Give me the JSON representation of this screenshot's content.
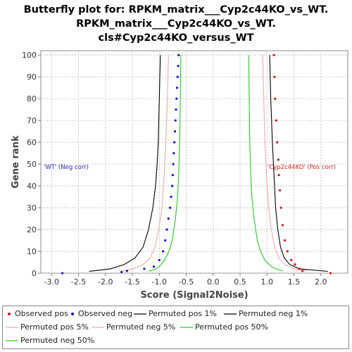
{
  "chart_data": {
    "type": "line",
    "title_lines": [
      "Butterfly plot for: RPKM_matrix___Cyp2c44KO_vs_WT.",
      "RPKM_matrix___Cyp2c44KO_vs_WT.",
      "cls#Cyp2c44KO_versus_WT"
    ],
    "xlabel": "Score (Signal2Noise)",
    "ylabel": "Gene rank",
    "xlim": [
      -3.2,
      2.5
    ],
    "ylim": [
      0,
      102
    ],
    "x_ticks": [
      "-3.0",
      "-2.5",
      "-2.0",
      "-1.5",
      "-1.0",
      "-0.5",
      "0.0",
      "0.5",
      "1.0",
      "1.5",
      "2.0"
    ],
    "y_ticks": [
      "0",
      "10",
      "20",
      "30",
      "40",
      "50",
      "60",
      "70",
      "80",
      "90",
      "100"
    ],
    "grid": true,
    "legend_position": "bottom",
    "annotations": [
      {
        "text": "'WT' (Neg corr)",
        "color": "#2222cc",
        "x": -3.2,
        "y": 50
      },
      {
        "text": "'Cyp2c44KO' (Pos corr)",
        "color": "#dd2222",
        "x": 1.05,
        "y": 50
      }
    ],
    "series": [
      {
        "name": "Observed pos",
        "kind": "points",
        "color": "#dd1111",
        "points": [
          [
            1.13,
            100
          ],
          [
            1.14,
            90
          ],
          [
            1.15,
            80
          ],
          [
            1.17,
            70
          ],
          [
            1.19,
            60
          ],
          [
            1.21,
            52
          ],
          [
            1.22,
            45
          ],
          [
            1.24,
            38
          ],
          [
            1.26,
            30
          ],
          [
            1.29,
            22
          ],
          [
            1.33,
            15
          ],
          [
            1.38,
            10
          ],
          [
            1.45,
            6
          ],
          [
            1.52,
            4
          ],
          [
            1.6,
            2
          ],
          [
            1.66,
            1
          ],
          [
            2.18,
            0
          ]
        ]
      },
      {
        "name": "Observed neg",
        "kind": "points",
        "color": "#1111dd",
        "points": [
          [
            -0.64,
            100
          ],
          [
            -0.65,
            95
          ],
          [
            -0.66,
            90
          ],
          [
            -0.67,
            85
          ],
          [
            -0.68,
            80
          ],
          [
            -0.69,
            75
          ],
          [
            -0.7,
            70
          ],
          [
            -0.71,
            65
          ],
          [
            -0.72,
            60
          ],
          [
            -0.73,
            55
          ],
          [
            -0.74,
            50
          ],
          [
            -0.75,
            45
          ],
          [
            -0.76,
            40
          ],
          [
            -0.78,
            35
          ],
          [
            -0.8,
            30
          ],
          [
            -0.83,
            25
          ],
          [
            -0.86,
            20
          ],
          [
            -0.89,
            15
          ],
          [
            -0.93,
            10
          ],
          [
            -1.0,
            6
          ],
          [
            -1.1,
            3
          ],
          [
            -1.28,
            2
          ],
          [
            -1.6,
            1
          ],
          [
            -1.7,
            0.5
          ],
          [
            -2.8,
            0
          ]
        ]
      },
      {
        "name": "Permuted pos 1%",
        "kind": "line",
        "color": "#000000",
        "points": [
          [
            1.05,
            100
          ],
          [
            1.07,
            80
          ],
          [
            1.1,
            60
          ],
          [
            1.13,
            45
          ],
          [
            1.16,
            30
          ],
          [
            1.2,
            20
          ],
          [
            1.25,
            12
          ],
          [
            1.32,
            7
          ],
          [
            1.42,
            4
          ],
          [
            1.6,
            2
          ],
          [
            2.13,
            0.8
          ]
        ]
      },
      {
        "name": "Permuted neg 1%",
        "kind": "line",
        "color": "#000000",
        "points": [
          [
            -0.98,
            100
          ],
          [
            -1.0,
            80
          ],
          [
            -1.02,
            60
          ],
          [
            -1.04,
            50
          ],
          [
            -1.07,
            40
          ],
          [
            -1.12,
            30
          ],
          [
            -1.2,
            20
          ],
          [
            -1.3,
            12
          ],
          [
            -1.45,
            7
          ],
          [
            -1.65,
            4
          ],
          [
            -1.9,
            2
          ],
          [
            -2.3,
            0.8
          ]
        ]
      },
      {
        "name": "Permuted pos 5%",
        "kind": "line",
        "color": "#f4a8a8",
        "points": [
          [
            0.92,
            100
          ],
          [
            0.94,
            80
          ],
          [
            0.96,
            60
          ],
          [
            0.99,
            45
          ],
          [
            1.03,
            30
          ],
          [
            1.08,
            20
          ],
          [
            1.14,
            12
          ],
          [
            1.22,
            7
          ],
          [
            1.33,
            4
          ],
          [
            1.5,
            2
          ],
          [
            1.75,
            1
          ]
        ]
      },
      {
        "name": "Permuted neg 5%",
        "kind": "line",
        "color": "#f4a8a8",
        "points": [
          [
            -0.83,
            100
          ],
          [
            -0.85,
            80
          ],
          [
            -0.88,
            60
          ],
          [
            -0.91,
            45
          ],
          [
            -0.95,
            30
          ],
          [
            -1.01,
            20
          ],
          [
            -1.08,
            12
          ],
          [
            -1.17,
            7
          ],
          [
            -1.3,
            4
          ],
          [
            -1.48,
            2
          ],
          [
            -1.7,
            1
          ]
        ]
      },
      {
        "name": "Permuted pos 50%",
        "kind": "line",
        "color": "#22cc22",
        "points": [
          [
            0.66,
            100
          ],
          [
            0.67,
            80
          ],
          [
            0.68,
            60
          ],
          [
            0.7,
            45
          ],
          [
            0.72,
            35
          ],
          [
            0.76,
            25
          ],
          [
            0.82,
            15
          ],
          [
            0.88,
            10
          ],
          [
            0.96,
            6
          ],
          [
            1.08,
            3
          ],
          [
            1.22,
            1.5
          ],
          [
            1.3,
            1
          ]
        ]
      },
      {
        "name": "Permuted neg 50%",
        "kind": "line",
        "color": "#22cc22",
        "points": [
          [
            -0.6,
            100
          ],
          [
            -0.61,
            80
          ],
          [
            -0.62,
            60
          ],
          [
            -0.64,
            45
          ],
          [
            -0.66,
            35
          ],
          [
            -0.7,
            25
          ],
          [
            -0.76,
            15
          ],
          [
            -0.82,
            10
          ],
          [
            -0.9,
            6
          ],
          [
            -1.0,
            3
          ],
          [
            -1.1,
            1.5
          ],
          [
            -1.2,
            1
          ]
        ]
      }
    ]
  }
}
